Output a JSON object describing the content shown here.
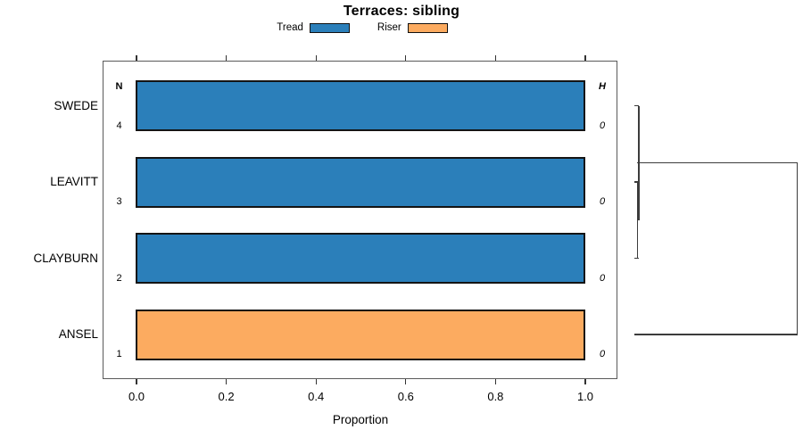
{
  "title": "Terraces: sibling",
  "legend": {
    "items": [
      {
        "label": "Tread",
        "color": "#2b7fba"
      },
      {
        "label": "Riser",
        "color": "#fcab60"
      }
    ]
  },
  "table_headers": {
    "n": "N",
    "h": "H"
  },
  "x_axis": {
    "label": "Proportion",
    "tick_labels": [
      "0.0",
      "0.2",
      "0.4",
      "0.6",
      "0.8",
      "1.0"
    ]
  },
  "rows": [
    {
      "label": "SWEDE",
      "n": "4",
      "h": "0",
      "series": "Tread",
      "value": 1.0
    },
    {
      "label": "LEAVITT",
      "n": "3",
      "h": "0",
      "series": "Tread",
      "value": 1.0
    },
    {
      "label": "CLAYBURN",
      "n": "2",
      "h": "0",
      "series": "Tread",
      "value": 1.0
    },
    {
      "label": "ANSEL",
      "n": "1",
      "h": "0",
      "series": "Riser",
      "value": 1.0
    }
  ],
  "chart_data": {
    "type": "bar",
    "orientation": "horizontal",
    "title": "Terraces: sibling",
    "xlabel": "Proportion",
    "xlim": [
      0,
      1
    ],
    "xticks": [
      0.0,
      0.2,
      0.4,
      0.6,
      0.8,
      1.0
    ],
    "grid": false,
    "legend_position": "top-center",
    "categories": [
      "SWEDE",
      "LEAVITT",
      "CLAYBURN",
      "ANSEL"
    ],
    "series": [
      {
        "name": "Tread",
        "color": "#2b7fba",
        "values": [
          1.0,
          1.0,
          1.0,
          0.0
        ]
      },
      {
        "name": "Riser",
        "color": "#fcab60",
        "values": [
          0.0,
          0.0,
          0.0,
          1.0
        ]
      }
    ],
    "annotations": {
      "N": [
        4,
        3,
        2,
        1
      ],
      "H": [
        0,
        0,
        0,
        0
      ]
    },
    "dendrogram": {
      "structure": "((SWEDE,(LEAVITT,CLAYBURN)),ANSEL)",
      "merge_heights": [
        0,
        0,
        0
      ],
      "position": "right"
    }
  }
}
